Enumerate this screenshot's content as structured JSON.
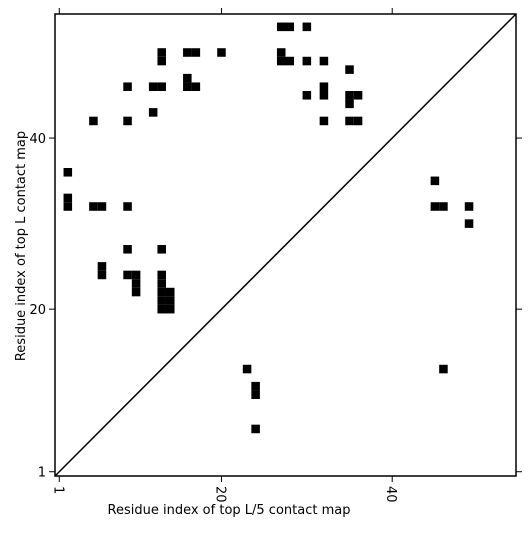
{
  "chart_data": {
    "type": "contact_map",
    "xlabel": "Residue index of top L/5 contact map",
    "ylabel": "Residue index of top L contact map",
    "color": "#000000",
    "xlim": [
      0.5,
      54.5
    ],
    "ylim": [
      0.5,
      54.5
    ],
    "xticks": [
      1,
      20,
      40
    ],
    "yticks": [
      1,
      20,
      40
    ],
    "x": [
      27,
      28,
      30,
      13,
      13,
      16,
      17,
      20,
      27,
      27,
      28,
      30,
      32,
      35,
      9,
      12,
      13,
      16,
      16,
      17,
      30,
      32,
      32,
      35,
      36,
      35,
      12,
      5,
      9,
      32,
      35,
      36,
      2,
      2,
      2,
      5,
      6,
      9,
      9,
      13,
      6,
      6,
      9,
      10,
      10,
      10,
      13,
      13,
      13,
      13,
      13,
      14,
      14,
      14,
      45,
      45,
      46,
      49,
      49,
      46,
      23,
      24,
      24,
      24
    ],
    "y": [
      53,
      53,
      53,
      50,
      49,
      50,
      50,
      50,
      50,
      49,
      49,
      49,
      49,
      48,
      46,
      46,
      46,
      47,
      46,
      46,
      45,
      46,
      45,
      45,
      45,
      44,
      43,
      42,
      42,
      42,
      42,
      42,
      36,
      33,
      32,
      32,
      32,
      32,
      27,
      27,
      25,
      24,
      24,
      24,
      23,
      22,
      24,
      23,
      22,
      21,
      20,
      22,
      21,
      20,
      35,
      32,
      32,
      32,
      30,
      13,
      13,
      11,
      10,
      6
    ]
  }
}
